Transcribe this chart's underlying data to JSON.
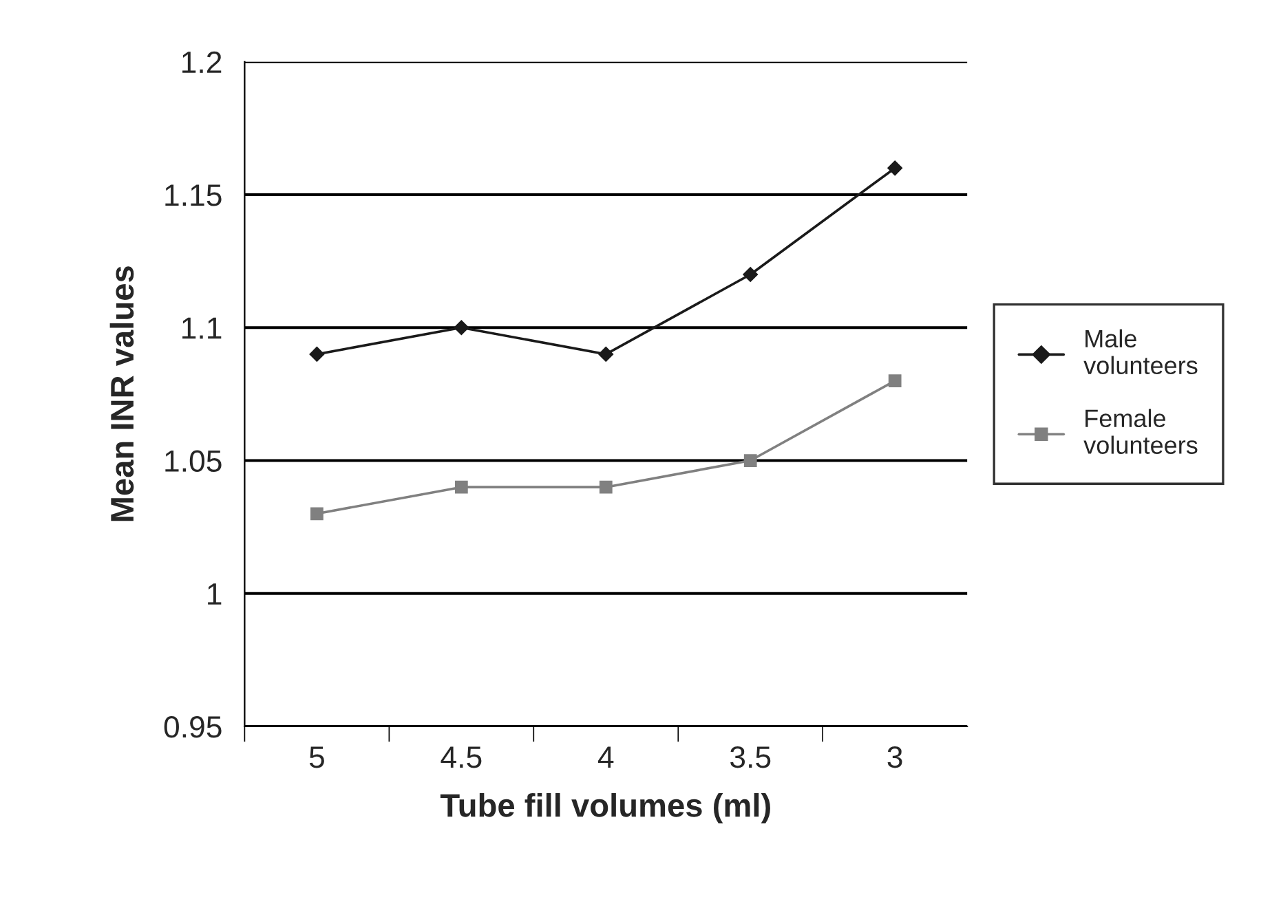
{
  "chart_data": {
    "type": "line",
    "xlabel": "Tube fill volumes (ml)",
    "ylabel": "Mean INR values",
    "categories": [
      "5",
      "4.5",
      "4",
      "3.5",
      "3"
    ],
    "series": [
      {
        "name": "Male volunteers",
        "color": "#1a1a1a",
        "marker": "diamond",
        "values": [
          1.09,
          1.1,
          1.09,
          1.12,
          1.16
        ]
      },
      {
        "name": "Female volunteers",
        "color": "#808080",
        "marker": "square",
        "values": [
          1.03,
          1.04,
          1.04,
          1.05,
          1.08
        ]
      }
    ],
    "ylim": [
      0.95,
      1.2
    ],
    "yticks": [
      0.95,
      1,
      1.05,
      1.1,
      1.15,
      1.2
    ],
    "grid": "y",
    "legend": "right"
  }
}
